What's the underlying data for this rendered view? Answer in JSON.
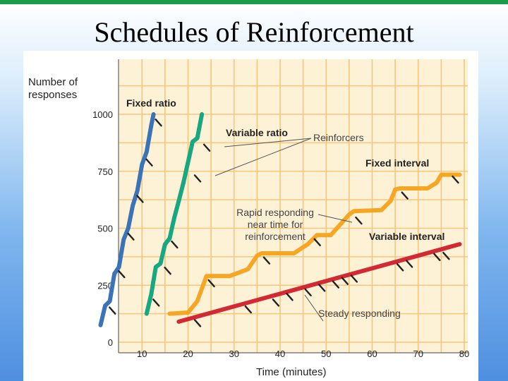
{
  "slide": {
    "title": "Schedules of Reinforcement",
    "accent_color": "#1a9c4a"
  },
  "chart_data": {
    "type": "line",
    "ylabel_lines": [
      "Number of",
      "responses"
    ],
    "xlabel": "Time (minutes)",
    "x_ticks": [
      "10",
      "20",
      "30",
      "40",
      "50",
      "60",
      "70",
      "80"
    ],
    "y_ticks": [
      "0",
      "250",
      "500",
      "750",
      "1000"
    ],
    "xlim": [
      0,
      80
    ],
    "ylim": [
      0,
      1000
    ],
    "grid": true,
    "series": [
      {
        "name": "Fixed ratio",
        "color": "#3a73b8",
        "points": [
          [
            1,
            75
          ],
          [
            2,
            160
          ],
          [
            3,
            180
          ],
          [
            4,
            300
          ],
          [
            5,
            330
          ],
          [
            6,
            450
          ],
          [
            7,
            500
          ],
          [
            8,
            600
          ],
          [
            9,
            665
          ],
          [
            10,
            780
          ],
          [
            11,
            835
          ],
          [
            12,
            950
          ],
          [
            12.5,
            1000
          ]
        ],
        "reinforcers": [
          [
            2.5,
            165
          ],
          [
            4.5,
            325
          ],
          [
            6.5,
            490
          ],
          [
            8.5,
            655
          ],
          [
            10.5,
            815
          ],
          [
            12.5,
            990
          ]
        ]
      },
      {
        "name": "Variable ratio",
        "color": "#17a781",
        "points": [
          [
            11,
            125
          ],
          [
            12,
            210
          ],
          [
            13,
            330
          ],
          [
            14,
            345
          ],
          [
            15,
            430
          ],
          [
            16,
            455
          ],
          [
            17,
            545
          ],
          [
            18,
            620
          ],
          [
            19,
            700
          ],
          [
            20,
            790
          ],
          [
            21,
            880
          ],
          [
            22,
            895
          ],
          [
            23,
            1000
          ]
        ],
        "reinforcers": [
          [
            12,
            200
          ],
          [
            14.5,
            340
          ],
          [
            16,
            455
          ],
          [
            21,
            745
          ],
          [
            23,
            880
          ]
        ]
      },
      {
        "name": "Fixed interval",
        "color": "#f5a623",
        "points": [
          [
            16,
            125
          ],
          [
            20,
            130
          ],
          [
            22,
            180
          ],
          [
            24,
            290
          ],
          [
            29,
            290
          ],
          [
            33,
            320
          ],
          [
            35,
            380
          ],
          [
            36,
            390
          ],
          [
            43,
            390
          ],
          [
            46,
            430
          ],
          [
            48,
            470
          ],
          [
            51,
            470
          ],
          [
            55,
            560
          ],
          [
            56,
            575
          ],
          [
            62,
            580
          ],
          [
            64,
            620
          ],
          [
            65,
            670
          ],
          [
            66,
            675
          ],
          [
            72,
            675
          ],
          [
            74,
            700
          ],
          [
            75,
            735
          ],
          [
            79,
            735
          ]
        ],
        "reinforcers": [
          [
            24,
            285
          ],
          [
            36,
            385
          ],
          [
            47,
            465
          ],
          [
            56,
            560
          ],
          [
            66,
            670
          ],
          [
            77,
            740
          ]
        ]
      },
      {
        "name": "Variable interval",
        "color": "#d22a34",
        "points": [
          [
            18,
            90
          ],
          [
            79,
            430
          ]
        ],
        "reinforcers": [
          [
            21,
            110
          ],
          [
            32,
            170
          ],
          [
            38,
            200
          ],
          [
            41,
            225
          ],
          [
            45,
            245
          ],
          [
            48,
            265
          ],
          [
            51,
            280
          ],
          [
            53,
            295
          ],
          [
            55,
            305
          ],
          [
            65,
            355
          ],
          [
            67,
            370
          ],
          [
            73,
            400
          ],
          [
            75,
            405
          ]
        ]
      }
    ],
    "annotations": {
      "reinforcers": "Reinforcers",
      "rapid_lines": [
        "Rapid responding",
        "near time for",
        "reinforcement"
      ],
      "steady": "Steady responding"
    },
    "colors": {
      "plot_background": "#fdf1d6",
      "grid": "#f4c67e",
      "axis": "#666666",
      "reinforcer_mark": "#222222",
      "leader": "#555555"
    }
  }
}
